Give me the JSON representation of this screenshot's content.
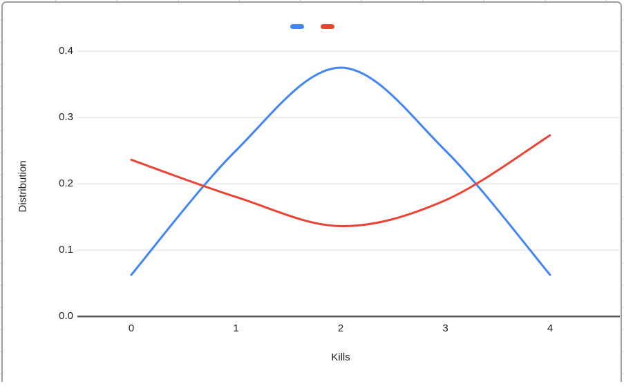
{
  "chart_data": {
    "type": "line",
    "smooth": true,
    "title": "",
    "xlabel": "Kills",
    "ylabel": "Distribution",
    "x": [
      0,
      1,
      2,
      3,
      4
    ],
    "x_tick_labels": [
      "0",
      "1",
      "2",
      "3",
      "4"
    ],
    "yticks": [
      0,
      0.1,
      0.2,
      0.3,
      0.4
    ],
    "y_tick_labels": [
      "0.0",
      "0.1",
      "0.2",
      "0.3",
      "0.4"
    ],
    "ylim": [
      0,
      0.4
    ],
    "xlim": [
      0,
      4
    ],
    "grid": true,
    "legend_position": "top-center",
    "series": [
      {
        "name": "",
        "color": "#4285F4",
        "values": [
          0.0625,
          0.25,
          0.375,
          0.25,
          0.0625
        ]
      },
      {
        "name": "",
        "color": "#EA4335",
        "values": [
          0.236,
          0.18,
          0.136,
          0.175,
          0.273
        ]
      }
    ],
    "gridline_color": "#e7e7e7",
    "axis_line_color": "#58585a",
    "label_color": "#212121"
  }
}
